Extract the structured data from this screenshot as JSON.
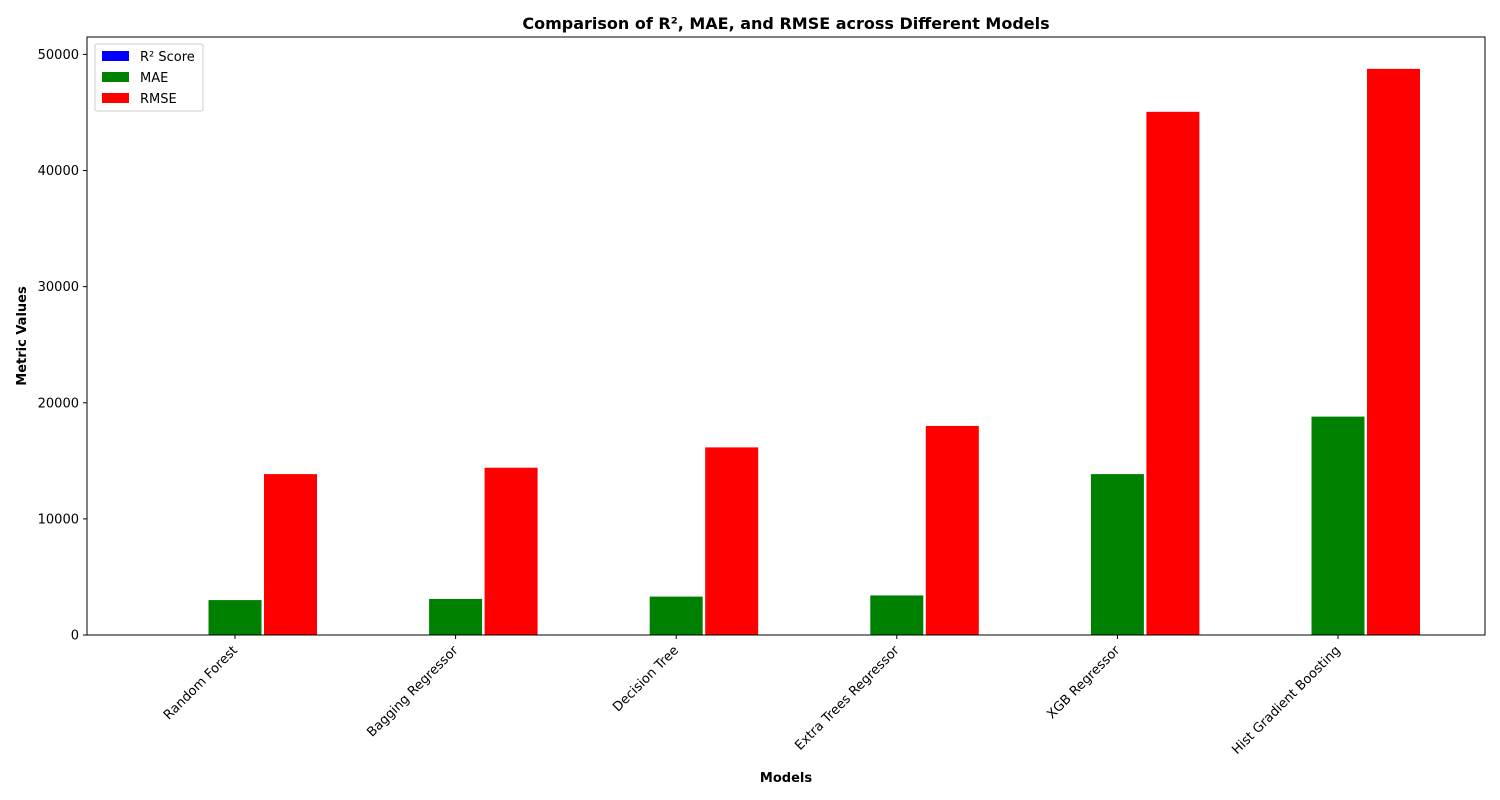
{
  "chart_data": {
    "type": "bar",
    "title": "Comparison of R², MAE, and RMSE across Different Models",
    "xlabel": "Models",
    "ylabel": "Metric Values",
    "categories": [
      "Random Forest",
      "Bagging Regressor",
      "Decision Tree",
      "Extra Trees Regressor",
      "XGB Regressor",
      "Hist Gradient Boosting"
    ],
    "series": [
      {
        "name": "R² Score",
        "color": "#0000ff",
        "values": [
          0.9,
          0.89,
          0.87,
          0.84,
          0.12,
          0.01
        ]
      },
      {
        "name": "MAE",
        "color": "#008000",
        "values": [
          3050,
          3150,
          3350,
          3450,
          13900,
          18850
        ]
      },
      {
        "name": "RMSE",
        "color": "#ff0000",
        "values": [
          13900,
          14450,
          16200,
          18050,
          45100,
          48800
        ]
      }
    ],
    "ylim": [
      0,
      51500
    ],
    "yticks": [
      0,
      10000,
      20000,
      30000,
      40000,
      50000
    ],
    "ytick_labels": [
      "0",
      "10000",
      "20000",
      "30000",
      "40000",
      "50000"
    ],
    "grid": false,
    "legend_position": "upper-left"
  }
}
